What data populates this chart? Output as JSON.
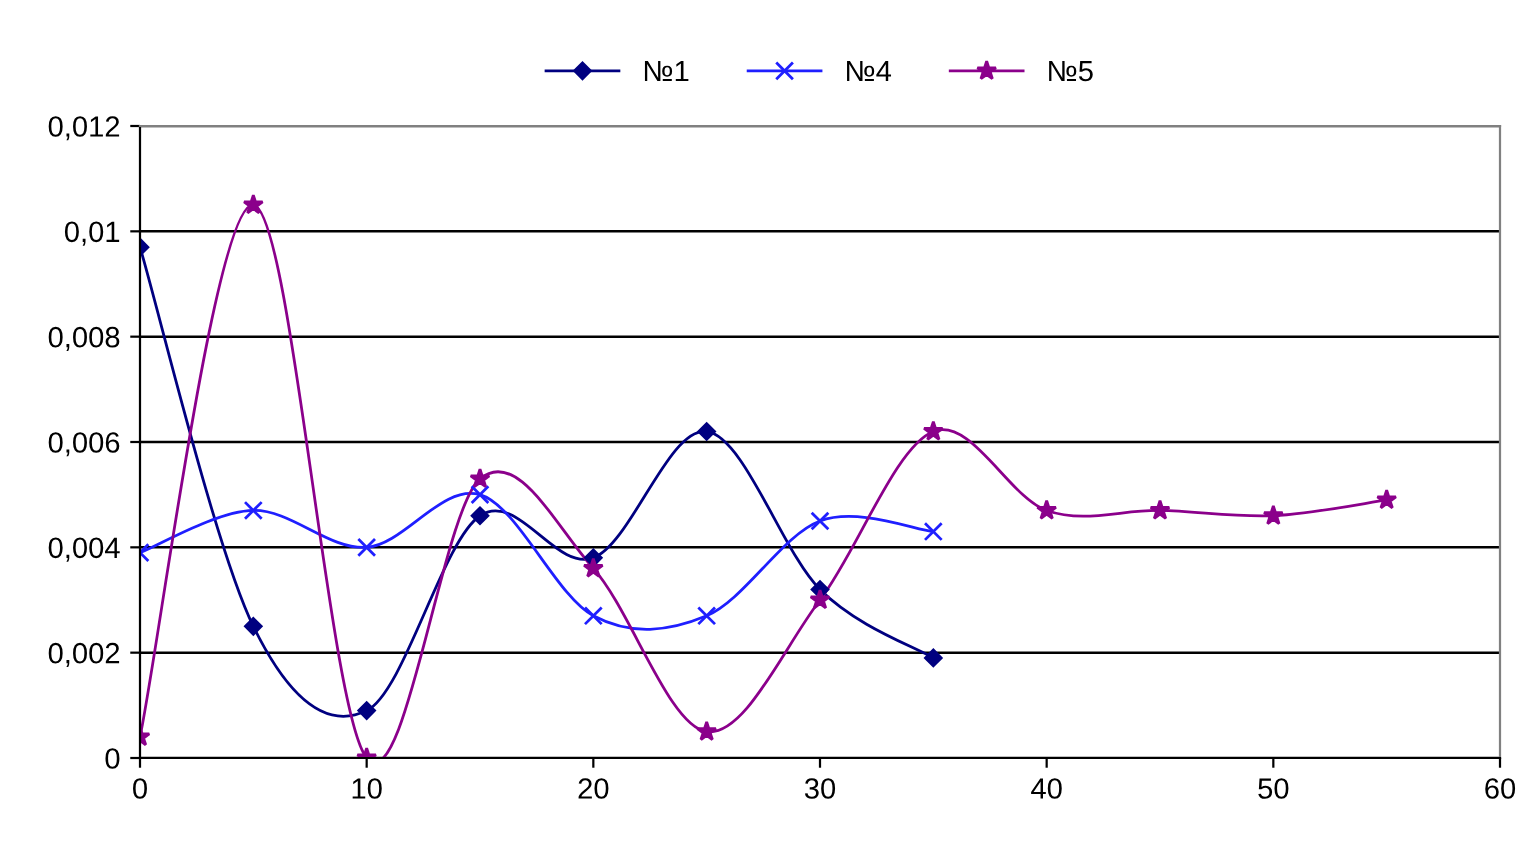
{
  "chart_data": {
    "type": "line",
    "series": [
      {
        "name": "№1",
        "color": "#000080",
        "marker": "diamond",
        "x": [
          0,
          5,
          10,
          15,
          20,
          25,
          30,
          35
        ],
        "values": [
          0.0097,
          0.0025,
          0.0009,
          0.0046,
          0.0038,
          0.0062,
          0.0032,
          0.0019
        ]
      },
      {
        "name": "№4",
        "color": "#1f1fff",
        "marker": "cross",
        "x": [
          0,
          5,
          10,
          15,
          20,
          25,
          30,
          35
        ],
        "values": [
          0.0039,
          0.0047,
          0.004,
          0.005,
          0.0027,
          0.0027,
          0.0045,
          0.0043
        ]
      },
      {
        "name": "№5",
        "color": "#8b008b",
        "marker": "star",
        "x": [
          0,
          5,
          10,
          15,
          20,
          25,
          30,
          35,
          40,
          45,
          50,
          55
        ],
        "values": [
          0.0004,
          0.0105,
          0.0,
          0.0053,
          0.0036,
          0.0005,
          0.003,
          0.0062,
          0.0047,
          0.0047,
          0.0046,
          0.0049
        ]
      }
    ],
    "xlim": [
      0,
      60
    ],
    "xticks": [
      0,
      10,
      20,
      30,
      40,
      50,
      60
    ],
    "ylim": [
      0,
      0.012
    ],
    "yticks": [
      {
        "value": 0,
        "label": "0"
      },
      {
        "value": 0.002,
        "label": "0,002"
      },
      {
        "value": 0.004,
        "label": "0,004"
      },
      {
        "value": 0.006,
        "label": "0,006"
      },
      {
        "value": 0.008,
        "label": "0,008"
      },
      {
        "value": 0.01,
        "label": "0,01"
      },
      {
        "value": 0.012,
        "label": "0,012"
      }
    ],
    "grid": "y",
    "legend": "top",
    "line_style": "solid"
  }
}
